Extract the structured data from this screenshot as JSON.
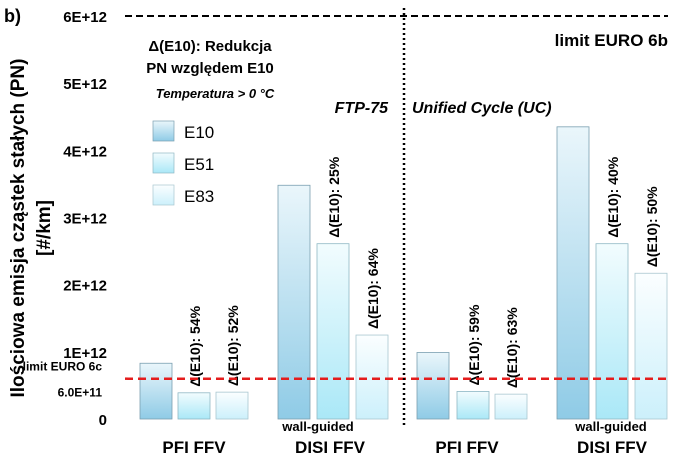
{
  "panel_label": "b)",
  "chart_data": {
    "type": "bar",
    "ylabel": "Ilościowa emisja cząstek stałych (PN)",
    "yunit": "[#/km]",
    "ylim": [
      0,
      6000000000000.0
    ],
    "yticks": [
      "0",
      "1E+12",
      "2E+12",
      "3E+12",
      "4E+12",
      "5E+12",
      "6E+12"
    ],
    "cycles": [
      "FTP-75",
      "Unified Cycle (UC)"
    ],
    "groups": [
      {
        "label": "PFI FFV",
        "note": "",
        "cycle": "FTP-75",
        "values": [
          830000000000.0,
          390000000000.0,
          400000000000.0
        ],
        "delta_labels": [
          "",
          "Δ(E10): 54%",
          "Δ(E10): 52%"
        ]
      },
      {
        "label": "DISI FFV",
        "note": "wall-guided",
        "cycle": "FTP-75",
        "values": [
          3480000000000.0,
          2610000000000.0,
          1250000000000.0
        ],
        "delta_labels": [
          "",
          "Δ(E10): 25%",
          "Δ(E10): 64%"
        ]
      },
      {
        "label": "PFI FFV",
        "note": "",
        "cycle": "Unified Cycle (UC)",
        "values": [
          990000000000.0,
          410000000000.0,
          370000000000.0
        ],
        "delta_labels": [
          "",
          "Δ(E10): 59%",
          "Δ(E10): 63%"
        ]
      },
      {
        "label": "DISI FFV",
        "note": "wall-guided",
        "cycle": "Unified Cycle (UC)",
        "values": [
          4350000000000.0,
          2610000000000.0,
          2170000000000.0
        ],
        "delta_labels": [
          "",
          "Δ(E10): 40%",
          "Δ(E10): 50%"
        ]
      }
    ],
    "series": [
      {
        "name": "E10",
        "color_top": "#eaf6fb",
        "color_bottom": "#8fcbe6"
      },
      {
        "name": "E51",
        "color_top": "#f2fcfe",
        "color_bottom": "#aae8f7"
      },
      {
        "name": "E83",
        "color_top": "#fbfeff",
        "color_bottom": "#ccf0fb"
      }
    ],
    "limit_lines": [
      {
        "label": "limit EURO 6b",
        "value": 6000000000000.0,
        "color": "#000000",
        "style": "dashed"
      },
      {
        "label": "limit EURO 6c",
        "value_label": "6.0E+11",
        "value": 600000000000.0,
        "color": "#e41c1c",
        "style": "dashed"
      }
    ],
    "annotation_lines": [
      "Δ(E10): Redukcja",
      "PN względem E10"
    ],
    "annotation_note": "Temperatura > 0 °C",
    "legend_placement": "top-left",
    "grid": false
  }
}
